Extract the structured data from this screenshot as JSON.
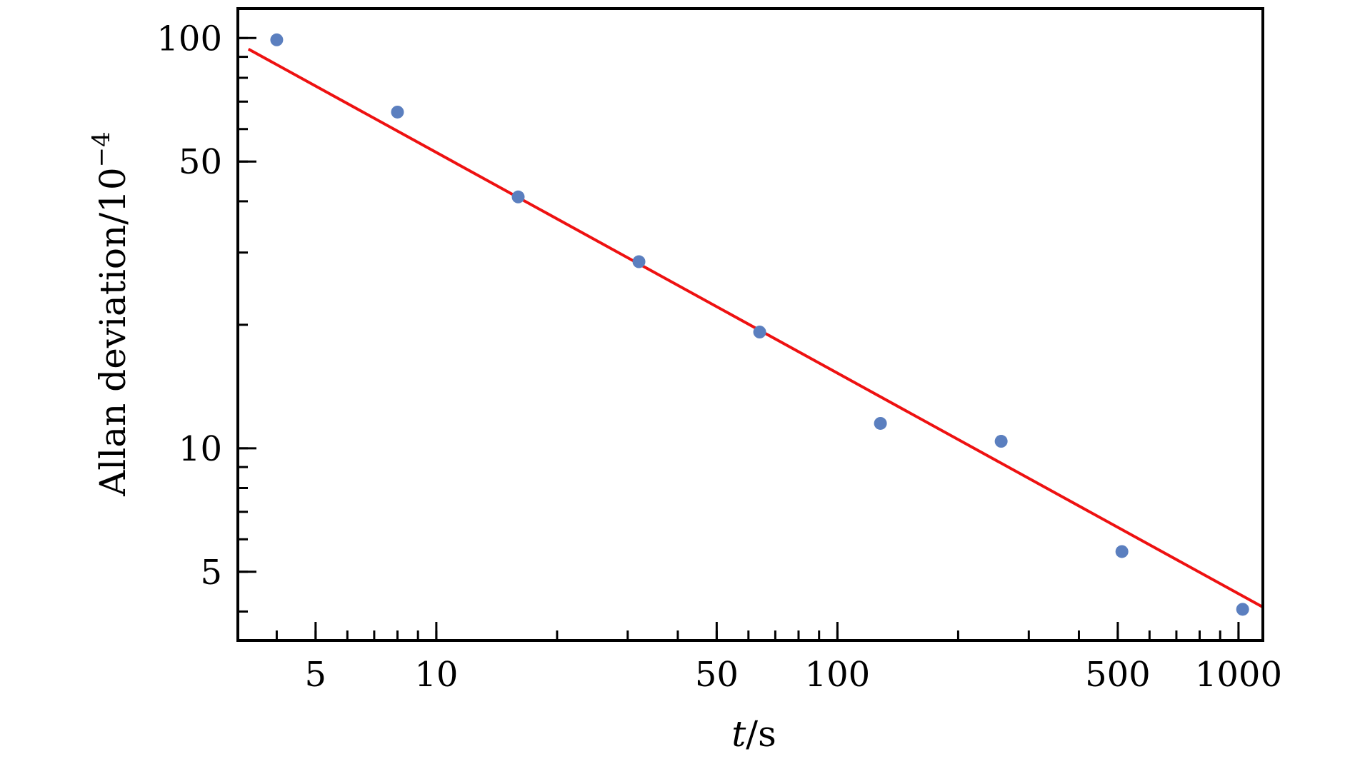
{
  "chart_data": {
    "type": "scatter",
    "xscale": "log",
    "yscale": "log",
    "xlim": [
      3.2,
      1150
    ],
    "ylim": [
      3.4,
      118
    ],
    "xlabel": {
      "italic": "t",
      "rest": "/s"
    },
    "ylabel": {
      "base": "Allan deviation/10",
      "exponent": "−4"
    },
    "xticks": [
      {
        "value": 5,
        "label": "5"
      },
      {
        "value": 10,
        "label": "10"
      },
      {
        "value": 50,
        "label": "50"
      },
      {
        "value": 100,
        "label": "100"
      },
      {
        "value": 500,
        "label": "500"
      },
      {
        "value": 1000,
        "label": "1000"
      }
    ],
    "yticks": [
      {
        "value": 5,
        "label": "5"
      },
      {
        "value": 10,
        "label": "10"
      },
      {
        "value": 50,
        "label": "50"
      },
      {
        "value": 100,
        "label": "100"
      }
    ],
    "grid": false,
    "series": [
      {
        "kind": "points",
        "color": "#5b7fbf",
        "x": [
          4,
          8,
          16,
          32,
          64,
          128,
          256,
          512,
          1024
        ],
        "y": [
          99,
          66,
          41,
          28.5,
          19.2,
          11.5,
          10.4,
          5.6,
          4.05
        ]
      },
      {
        "kind": "fit-line",
        "color": "#ee1111",
        "x": [
          3.4,
          1150
        ],
        "y": [
          94,
          4.1
        ]
      }
    ]
  }
}
